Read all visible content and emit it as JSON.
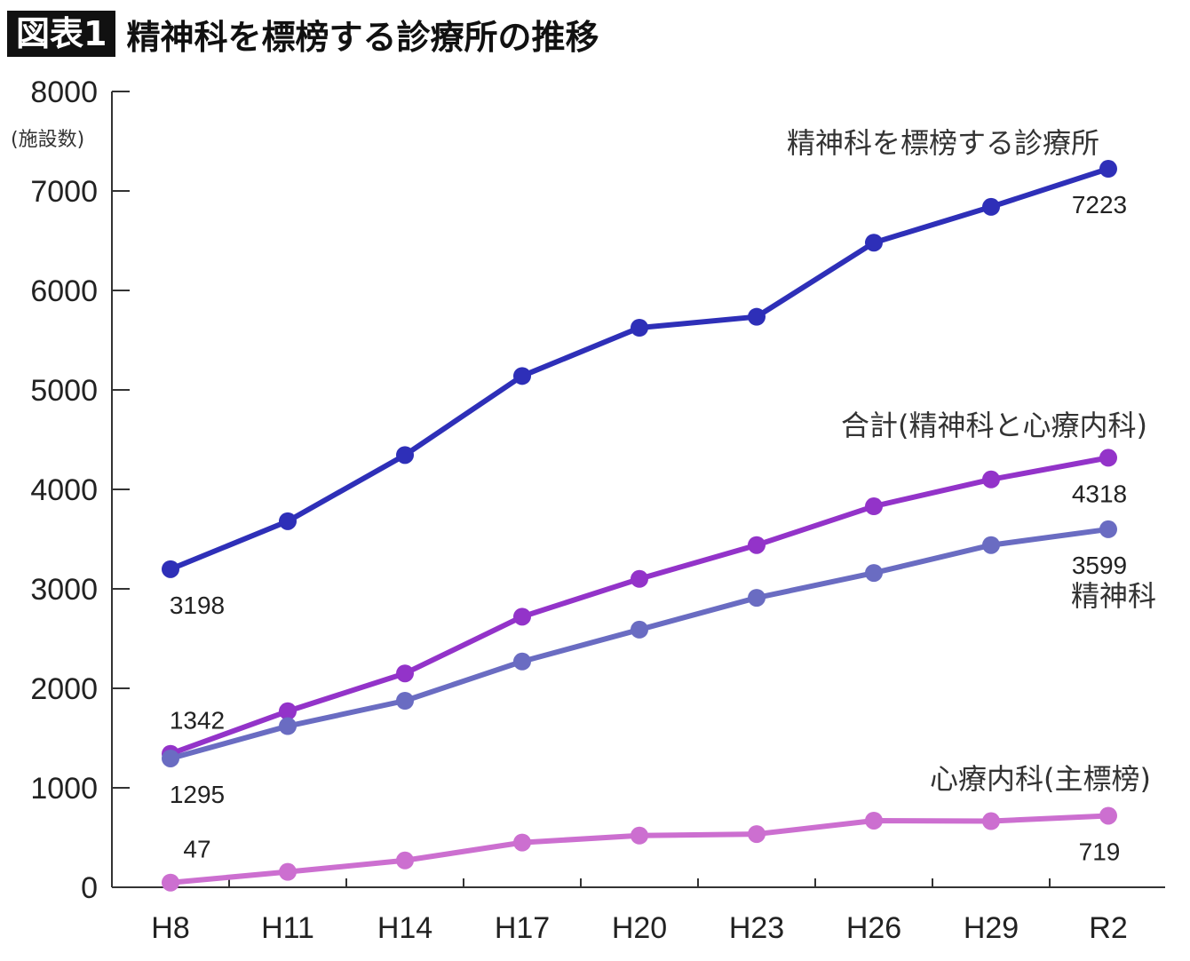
{
  "header": {
    "badge": "図表1",
    "title": "精神科を標榜する診療所の推移"
  },
  "chart_data": {
    "type": "line",
    "title": "精神科を標榜する診療所の推移",
    "ylabel": "(施設数)",
    "xlabel": "",
    "ylim": [
      0,
      8000
    ],
    "yticks": [
      0,
      1000,
      2000,
      3000,
      4000,
      5000,
      6000,
      7000,
      8000
    ],
    "categories": [
      "H8",
      "H11",
      "H14",
      "H17",
      "H20",
      "H23",
      "H26",
      "H29",
      "R2"
    ],
    "grid": false,
    "series": [
      {
        "name": "精神科を標榜する診療所",
        "color": "#2e2fb8",
        "values": [
          3198,
          3680,
          4345,
          5140,
          5625,
          5735,
          6480,
          6840,
          7223
        ],
        "labels": [
          {
            "index": 0,
            "text": "3198",
            "pos": "below"
          },
          {
            "index": 8,
            "text": "7223",
            "pos": "below"
          }
        ]
      },
      {
        "name": "合計(精神科と心療内科)",
        "color": "#9333c9",
        "values": [
          1342,
          1770,
          2150,
          2720,
          3100,
          3440,
          3830,
          4100,
          4318
        ],
        "labels": [
          {
            "index": 0,
            "text": "1342",
            "pos": "above"
          },
          {
            "index": 8,
            "text": "4318",
            "pos": "below"
          }
        ]
      },
      {
        "name": "精神科",
        "color": "#6a6cc2",
        "values": [
          1295,
          1620,
          1875,
          2270,
          2590,
          2910,
          3160,
          3440,
          3599
        ],
        "labels": [
          {
            "index": 0,
            "text": "1295",
            "pos": "below"
          },
          {
            "index": 8,
            "text": "3599",
            "pos": "below"
          }
        ]
      },
      {
        "name": "心療内科(主標榜)",
        "color": "#cc6fd0",
        "values": [
          47,
          155,
          270,
          450,
          520,
          535,
          670,
          665,
          719
        ],
        "labels": [
          {
            "index": 0,
            "text": "47",
            "pos": "above"
          },
          {
            "index": 8,
            "text": "719",
            "pos": "below"
          }
        ]
      }
    ]
  }
}
